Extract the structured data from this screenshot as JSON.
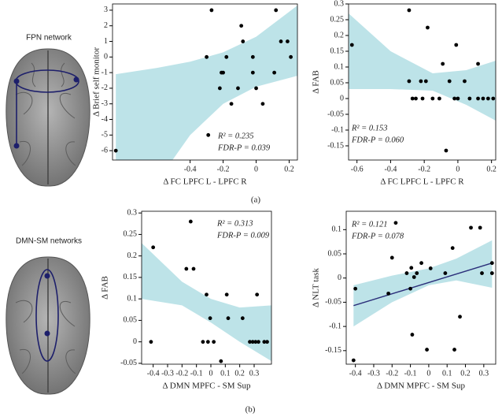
{
  "figure": {
    "panels": [
      {
        "label": "(a)",
        "network": "FPN network"
      },
      {
        "label": "(b)",
        "network": "DMN-SM networks"
      }
    ]
  },
  "chart_data": [
    {
      "type": "scatter",
      "y_label": "Δ Brief self monitor",
      "x_label": "Δ FC LPFC L - LPFC R",
      "annotations": [
        "R² = 0.235",
        "FDR-P = 0.039"
      ],
      "x": [
        -0.85,
        -0.3,
        -0.27,
        -0.29,
        -0.22,
        -0.21,
        -0.2,
        -0.18,
        -0.15,
        -0.11,
        -0.09,
        -0.08,
        -0.02,
        -0.02,
        0,
        0.04,
        0.11,
        0.12,
        0.15,
        0.19,
        0.21
      ],
      "values": [
        -6,
        0,
        3,
        -5,
        -2,
        -1,
        -1,
        0,
        -3,
        -2,
        2,
        1,
        -1,
        0,
        -2,
        -3,
        -1,
        3,
        1,
        1,
        0
      ],
      "color": "#000000",
      "ci": {
        "x": [
          -0.85,
          -0.6,
          -0.4,
          -0.2,
          0,
          0.25
        ],
        "upper": [
          -1.1,
          -0.7,
          -0.3,
          0.3,
          1.3,
          3.3
        ],
        "lower": [
          -12,
          -8,
          -5,
          -3,
          -1.9,
          -1.2
        ],
        "color": "#bde3e8"
      },
      "xlim": [
        -0.87,
        0.25
      ],
      "ylim": [
        -6.6,
        3.4
      ],
      "xticks": [
        -0.4,
        -0.2,
        0,
        0.2
      ],
      "yticks": [
        3,
        2,
        1,
        0,
        -1,
        -2,
        -3,
        -4,
        -5,
        -6
      ]
    },
    {
      "type": "scatter",
      "y_label": "Δ FAB",
      "x_label": "Δ FC LPFC L - LPFC R",
      "annotations": [
        "R² = 0.153",
        "FDR-P = 0.060"
      ],
      "x": [
        -0.63,
        -0.29,
        -0.29,
        -0.27,
        -0.25,
        -0.22,
        -0.21,
        -0.19,
        -0.18,
        -0.15,
        -0.11,
        -0.09,
        -0.07,
        -0.05,
        -0.02,
        -0.01,
        0,
        0.04,
        0.07,
        0.12,
        0.12,
        0.15,
        0.18,
        0.21
      ],
      "values": [
        0.17,
        0.28,
        0.055,
        0,
        0,
        0.055,
        0,
        0.055,
        0.225,
        0,
        0,
        0.11,
        -0.165,
        0.055,
        0,
        0.17,
        0,
        0.055,
        0,
        0.11,
        0,
        0,
        0,
        0
      ],
      "color": "#000000",
      "ci": {
        "x": [
          -0.65,
          -0.4,
          -0.15,
          0.05,
          0.225
        ],
        "upper": [
          0.27,
          0.15,
          0.08,
          0.09,
          0.12
        ],
        "lower": [
          0.03,
          0.03,
          0.025,
          -0.02,
          -0.07
        ],
        "color": "#bde3e8"
      },
      "xlim": [
        -0.65,
        0.225
      ],
      "ylim": [
        -0.195,
        0.3
      ],
      "xticks": [
        -0.6,
        -0.4,
        -0.2,
        0,
        0.2
      ],
      "yticks": [
        0.3,
        0.25,
        0.2,
        0.15,
        0.1,
        0.05,
        0,
        -0.05,
        -0.1,
        -0.15
      ]
    },
    {
      "type": "scatter",
      "y_label": "Δ FAB",
      "x_label": "Δ DMN MPFC - SM Sup",
      "annotations": [
        "R² = 0.313",
        "FDR-P = 0.009"
      ],
      "x": [
        -0.4,
        -0.415,
        -0.17,
        -0.14,
        -0.12,
        -0.03,
        -0.055,
        -0.02,
        -0.005,
        0.02,
        0.07,
        0.11,
        0.12,
        0.22,
        0.27,
        0.29,
        0.31,
        0.33,
        0.37,
        0.39,
        0.32
      ],
      "values": [
        0.22,
        0,
        0.17,
        0.28,
        0.17,
        0.11,
        0,
        0,
        0.055,
        0,
        -0.045,
        0.11,
        0.055,
        0.055,
        0,
        0,
        0,
        0,
        0,
        0,
        0.11
      ],
      "color": "#000000",
      "ci": {
        "x": [
          -0.48,
          -0.2,
          0,
          0.2,
          0.42
        ],
        "upper": [
          0.23,
          0.14,
          0.1,
          0.08,
          0.085
        ],
        "lower": [
          0.1,
          0.085,
          0.045,
          0,
          -0.045
        ],
        "color": "#bde3e8"
      },
      "xlim": [
        -0.48,
        0.42
      ],
      "ylim": [
        -0.052,
        0.304
      ],
      "xticks": [
        -0.4,
        -0.3,
        -0.2,
        -0.1,
        0,
        0.1,
        0.2,
        0.3
      ],
      "yticks": [
        0.3,
        0.25,
        0.2,
        0.15,
        0.1,
        0.05,
        0,
        -0.05
      ]
    },
    {
      "type": "scatter",
      "y_label": "Δ NLT task",
      "x_label": "Δ DMN MPFC - SM Sup",
      "annotations": [
        "R² = 0.121",
        "FDR-P = 0.078"
      ],
      "x": [
        -0.41,
        -0.4,
        -0.22,
        -0.2,
        -0.18,
        -0.12,
        -0.1,
        -0.095,
        -0.09,
        -0.08,
        -0.065,
        -0.04,
        -0.01,
        0.01,
        0.09,
        0.13,
        0.14,
        0.17,
        0.23,
        0.28,
        0.29,
        0.345,
        0.345
      ],
      "values": [
        -0.17,
        -0.022,
        -0.032,
        0.042,
        0.114,
        0.01,
        -0.022,
        0.021,
        -0.117,
        0.002,
        0.01,
        0.031,
        -0.148,
        0.02,
        0.01,
        0.062,
        -0.148,
        -0.08,
        0.104,
        0.104,
        0.01,
        0.031,
        0.01
      ],
      "color": "#000000",
      "ci": {
        "x": [
          -0.41,
          -0.2,
          0,
          0.15,
          0.345
        ],
        "upper": [
          -0.015,
          0.005,
          0.02,
          0.04,
          0.078
        ],
        "lower": [
          -0.1,
          -0.05,
          -0.015,
          -0.005,
          -0.02
        ],
        "color": "#bde3e8"
      },
      "fit": {
        "x": [
          -0.41,
          0.345
        ],
        "y": [
          -0.057,
          0.031
        ],
        "color": "#2b2f7a"
      },
      "xlim": [
        -0.45,
        0.365
      ],
      "ylim": [
        -0.178,
        0.138
      ],
      "xticks": [
        -0.4,
        -0.3,
        -0.2,
        -0.1,
        0,
        0.1,
        0.2,
        0.3
      ],
      "yticks": [
        0.1,
        0.05,
        0,
        -0.05,
        -0.1,
        -0.15
      ]
    }
  ]
}
